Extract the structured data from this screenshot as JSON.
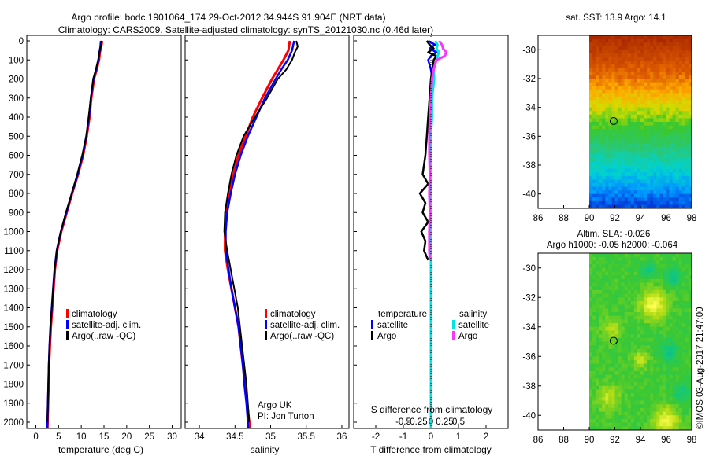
{
  "figure": {
    "title_line1": "Argo profile: bodc 1901064_174 29-Oct-2012 34.944S 91.904E (NRT data)",
    "title_line2": "Climatology: CARS2009. Satellite-adjusted climatology: synTS_20121030.nc (0.46d later)",
    "credit": "©IMOS 03-Aug-2017 21:47:00",
    "argo_note_line1": "Argo UK",
    "argo_note_line2": "PI: Jon Turton"
  },
  "colors": {
    "climatology": "#ff0000",
    "satellite_adj": "#0000ff",
    "argo": "#000000",
    "sal_satellite": "#00e5e5",
    "sal_argo": "#ff33ff"
  },
  "chart_data": [
    {
      "id": "temperature",
      "type": "line",
      "xlabel": "temperature (deg C)",
      "ylabel": "depth",
      "xlim": [
        -2,
        32
      ],
      "ylim": [
        2070,
        0
      ],
      "xticks": [
        0,
        5,
        10,
        15,
        20,
        25,
        30
      ],
      "yticks": [
        0,
        100,
        200,
        300,
        400,
        500,
        600,
        700,
        800,
        900,
        1000,
        1100,
        1200,
        1300,
        1400,
        1500,
        1600,
        1700,
        1800,
        1900,
        2000
      ],
      "legend": [
        "climatology",
        "satellite-adj. clim.",
        "Argo(..raw -QC)"
      ],
      "legend_position": "lower-right",
      "series": [
        {
          "name": "climatology",
          "depth": [
            0,
            30,
            60,
            100,
            150,
            200,
            300,
            400,
            500,
            600,
            700,
            800,
            900,
            1000,
            1100,
            1200,
            1300,
            1400,
            1500,
            1600,
            1700,
            1800,
            1900,
            2000,
            2050
          ],
          "values": [
            14.6,
            14.4,
            14.1,
            13.9,
            13.4,
            12.8,
            12.2,
            11.8,
            11.2,
            10.4,
            9.3,
            8.0,
            6.8,
            5.6,
            4.7,
            4.2,
            3.9,
            3.6,
            3.3,
            3.1,
            2.9,
            2.8,
            2.7,
            2.6,
            2.55
          ]
        },
        {
          "name": "satellite-adj. clim.",
          "depth": [
            0,
            30,
            60,
            100,
            150,
            200,
            300,
            400,
            500,
            600,
            700,
            800,
            900,
            1000,
            1100,
            1200,
            1300,
            1400,
            1500,
            1600,
            1700,
            1800,
            1900,
            2000,
            2050
          ],
          "values": [
            14.3,
            14.2,
            14.0,
            13.8,
            13.3,
            12.7,
            12.1,
            11.7,
            11.1,
            10.3,
            9.2,
            7.9,
            6.7,
            5.5,
            4.6,
            4.1,
            3.8,
            3.5,
            3.2,
            3.0,
            2.85,
            2.75,
            2.65,
            2.55,
            2.5
          ]
        },
        {
          "name": "Argo(..raw -QC)",
          "depth": [
            0,
            30,
            60,
            100,
            150,
            200,
            300,
            400,
            500,
            600,
            700,
            800,
            900,
            1000,
            1100,
            1200,
            1300,
            1400,
            1500,
            1600,
            1700,
            1800,
            1900,
            2000
          ],
          "values": [
            14.5,
            14.3,
            14.0,
            13.7,
            13.2,
            12.6,
            12.1,
            11.6,
            11.1,
            10.2,
            9.1,
            7.9,
            6.6,
            5.5,
            4.6,
            4.1,
            3.8,
            3.5,
            3.2,
            3.0,
            2.85,
            2.75,
            2.65,
            2.55
          ]
        }
      ]
    },
    {
      "id": "salinity",
      "type": "line",
      "xlabel": "salinity",
      "xlim": [
        33.8,
        36.1
      ],
      "ylim": [
        2070,
        0
      ],
      "xticks": [
        34,
        34.5,
        35,
        35.5,
        36
      ],
      "legend": [
        "climatology",
        "satellite-adj. clim.",
        "Argo(..raw -QC)"
      ],
      "legend_position": "lower-right",
      "series": [
        {
          "name": "climatology",
          "depth": [
            0,
            50,
            100,
            150,
            200,
            300,
            400,
            500,
            600,
            700,
            800,
            900,
            1000,
            1100,
            1200,
            1300,
            1400,
            1500,
            1600,
            1700,
            1800,
            1900,
            2000,
            2050
          ],
          "values": [
            35.27,
            35.25,
            35.18,
            35.1,
            35.02,
            34.88,
            34.75,
            34.65,
            34.55,
            34.48,
            34.42,
            34.38,
            34.36,
            34.36,
            34.4,
            34.45,
            34.5,
            34.55,
            34.58,
            34.61,
            34.64,
            34.67,
            34.7,
            34.72
          ]
        },
        {
          "name": "satellite-adj. clim.",
          "depth": [
            0,
            50,
            100,
            150,
            200,
            300,
            400,
            500,
            600,
            700,
            800,
            900,
            1000,
            1100,
            1200,
            1300,
            1400,
            1500,
            1600,
            1700,
            1800,
            1900,
            2000,
            2050
          ],
          "values": [
            35.33,
            35.3,
            35.24,
            35.15,
            35.07,
            34.92,
            34.8,
            34.68,
            34.58,
            34.5,
            34.44,
            34.39,
            34.37,
            34.37,
            34.41,
            34.45,
            34.5,
            34.55,
            34.58,
            34.61,
            34.63,
            34.66,
            34.68,
            34.69
          ]
        },
        {
          "name": "Argo(..raw -QC)",
          "depth": [
            0,
            30,
            60,
            100,
            150,
            200,
            300,
            400,
            500,
            600,
            700,
            800,
            900,
            1000,
            1100,
            1200,
            1300,
            1400,
            1500,
            1600,
            1700,
            1800,
            1900,
            2000
          ],
          "values": [
            35.36,
            35.38,
            35.34,
            35.3,
            35.22,
            35.1,
            34.95,
            34.78,
            34.62,
            34.52,
            34.45,
            34.4,
            34.36,
            34.35,
            34.39,
            34.44,
            34.49,
            34.54,
            34.57,
            34.6,
            34.63,
            34.66,
            34.68,
            34.7
          ]
        }
      ]
    },
    {
      "id": "difference",
      "type": "line",
      "xlabel": "T difference from climatology",
      "xlabel_top": "S difference from climatology",
      "xlim": [
        -2.8,
        2.8
      ],
      "ylim": [
        2070,
        0
      ],
      "xticks": [
        -2,
        -1,
        0,
        1,
        2
      ],
      "xticks_sal": [
        -0.5,
        -0.25,
        0,
        0.25,
        0.5
      ],
      "xticks_sal_labels": [
        "-0.5",
        "-0.25",
        "0",
        "0.25",
        "0.5"
      ],
      "legend_left_title": "temperature",
      "legend_right_title": "salinity",
      "legend_left": [
        "satellite",
        "Argo"
      ],
      "legend_right": [
        "satellite",
        "Argo"
      ],
      "series": [
        {
          "name": "T satellite",
          "depth": [
            0,
            20,
            40,
            60,
            80,
            100,
            150,
            200,
            300,
            400,
            500,
            600,
            700,
            800,
            900,
            1000,
            1200,
            1400,
            1600,
            1800,
            2000
          ],
          "values": [
            -0.1,
            0.15,
            -0.05,
            0.2,
            0.0,
            -0.1,
            0.0,
            0.05,
            0.0,
            0.0,
            0.0,
            0.0,
            0.0,
            0.0,
            0.0,
            0.0,
            0.0,
            0.0,
            0.0,
            0.0,
            0.0
          ]
        },
        {
          "name": "T Argo",
          "depth": [
            0,
            20,
            40,
            60,
            80,
            100,
            150,
            200,
            300,
            400,
            500,
            600,
            700,
            750,
            800,
            850,
            900,
            950,
            1000,
            1050,
            1100,
            1150
          ],
          "values": [
            -0.15,
            -0.05,
            0.1,
            -0.1,
            0.2,
            0.1,
            0.05,
            0.0,
            -0.05,
            -0.1,
            -0.15,
            -0.2,
            -0.3,
            -0.1,
            -0.4,
            -0.2,
            -0.3,
            -0.1,
            -0.35,
            -0.2,
            -0.25,
            -0.1
          ]
        },
        {
          "name": "S satellite",
          "depth": [
            0,
            20,
            40,
            60,
            80,
            100,
            150,
            200,
            300,
            400,
            500,
            600,
            700,
            800,
            900,
            1000,
            1200,
            1400,
            1600,
            1800,
            2000,
            2050
          ],
          "values": [
            0.08,
            0.12,
            0.1,
            0.15,
            0.12,
            0.1,
            0.05,
            0.06,
            0.02,
            0.02,
            0.0,
            0.0,
            0.0,
            0.0,
            0.0,
            0.0,
            0.0,
            0.0,
            0.0,
            0.0,
            0.0,
            0.0
          ]
        },
        {
          "name": "S Argo",
          "depth": [
            0,
            20,
            40,
            60,
            80,
            100,
            150,
            200,
            300,
            400,
            500,
            600,
            700,
            800,
            900,
            1000,
            1100,
            1150
          ],
          "values": [
            0.15,
            0.2,
            0.22,
            0.28,
            0.25,
            0.1,
            0.05,
            0.02,
            0.0,
            -0.02,
            -0.03,
            -0.03,
            -0.02,
            -0.03,
            -0.02,
            -0.03,
            -0.03,
            -0.02
          ]
        }
      ]
    },
    {
      "id": "sst-map",
      "type": "heatmap",
      "title": "sat. SST: 13.9 Argo: 14.1",
      "xlim": [
        86,
        98
      ],
      "ylim": [
        -41,
        -29
      ],
      "xticks": [
        86,
        88,
        90,
        92,
        94,
        96,
        98
      ],
      "yticks": [
        -30,
        -32,
        -34,
        -36,
        -38,
        -40
      ],
      "data_xrange": [
        90,
        98
      ],
      "marker": [
        91.904,
        -34.944
      ]
    },
    {
      "id": "sla-map",
      "type": "heatmap",
      "title_line1": "Altim. SLA: -0.026",
      "title_line2": "Argo h1000: -0.05 h2000: -0.064",
      "xlim": [
        86,
        98
      ],
      "ylim": [
        -41,
        -29
      ],
      "xticks": [
        86,
        88,
        90,
        92,
        94,
        96,
        98
      ],
      "yticks": [
        -30,
        -32,
        -34,
        -36,
        -38,
        -40
      ],
      "data_xrange": [
        90,
        98
      ],
      "marker": [
        91.904,
        -34.944
      ]
    }
  ]
}
